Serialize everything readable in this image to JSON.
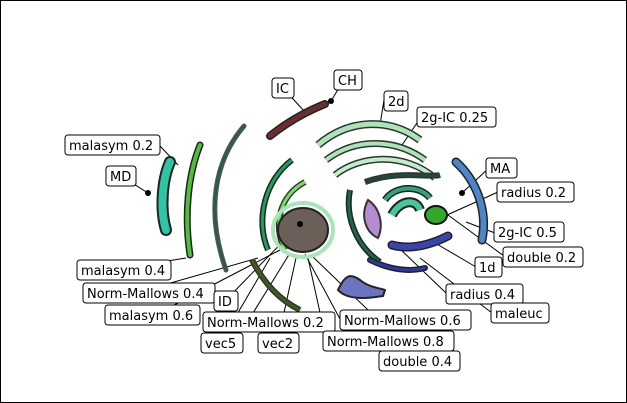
{
  "labels": {
    "IC": "IC",
    "CH": "CH",
    "d2": "2d",
    "gIC025": "2g-IC 0.25",
    "malasym02": "malasym 0.2",
    "MD": "MD",
    "MA": "MA",
    "radius02": "radius 0.2",
    "gIC05": "2g-IC 0.5",
    "double02": "double 0.2",
    "d1": "1d",
    "malasym04": "malasym 0.4",
    "nm04": "Norm-Mallows 0.4",
    "radius04": "radius 0.4",
    "maleuc": "maleuc",
    "ID": "ID",
    "malasym06": "malasym 0.6",
    "nm02": "Norm-Mallows 0.2",
    "nm06": "Norm-Mallows 0.6",
    "vec5": "vec5",
    "vec2": "vec2",
    "nm08": "Norm-Mallows 0.8",
    "double04": "double 0.4"
  },
  "colors": {
    "IC": "#6b2e2e",
    "MD": "#2ec4a6",
    "malasym02": "#2a5c4c",
    "malasym04": "#4fbf3a",
    "malasym06": "#1e4a3a",
    "gIC025": "#a8e6b8",
    "radius": "#2fa57a",
    "MA": "#4a86c8",
    "gIC05": "#2faa2a",
    "double": "#3a44b0",
    "maleuc": "#6a74c0",
    "purple": "#b48cd0",
    "ID": "#6b5f57",
    "vec": "#3a5f1a"
  }
}
